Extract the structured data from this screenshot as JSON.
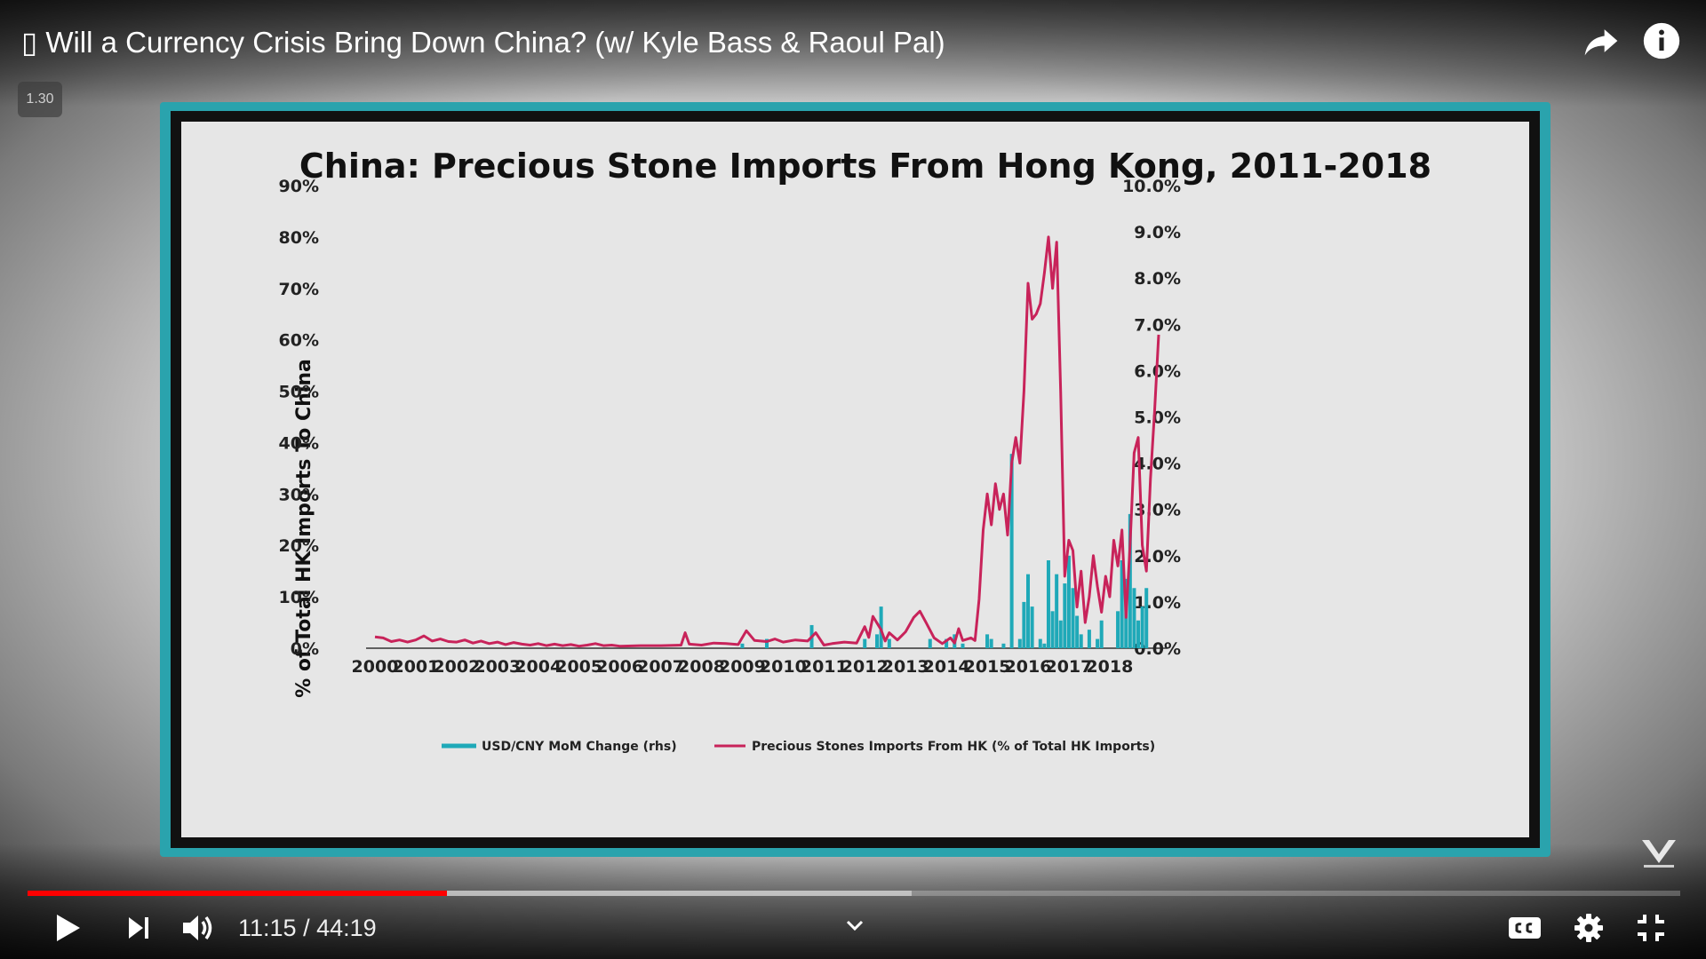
{
  "player": {
    "title": "▯ Will a Currency Crisis Bring Down China? (w/ Kyle Bass & Raoul Pal)",
    "speed_badge": "1.30",
    "time_current": "11:15",
    "time_separator": " / ",
    "time_total": "44:19",
    "progress_played_fraction": 0.254,
    "progress_buffered_fraction": 0.535,
    "icons": {
      "share": "share-arrow-icon",
      "info": "info-icon",
      "play": "play-icon",
      "next": "skip-next-icon",
      "volume": "volume-icon",
      "chevron": "chevron-down-icon",
      "cc": "closed-captions-icon",
      "settings": "gear-icon",
      "fullscreen_exit": "exit-fullscreen-icon",
      "logo": "real-vision-logo"
    },
    "colors": {
      "progress": "#ff0000",
      "frame": "#2aa3ad"
    }
  },
  "chart_data": {
    "type": "line",
    "title": "China: Precious Stone Imports From Hong Kong, 2011-2018",
    "ylabel": "% of Total HK Imports To China",
    "ylim": [
      0,
      90
    ],
    "y2lim": [
      0,
      10
    ],
    "y_ticks": [
      "90%",
      "80%",
      "70%",
      "60%",
      "50%",
      "40%",
      "30%",
      "20%",
      "10%",
      "0%"
    ],
    "y2_ticks": [
      "10.0%",
      "9.0%",
      "8.0%",
      "7.0%",
      "6.0%",
      "5.0%",
      "4.0%",
      "3.0%",
      "2.0%",
      "1.0%",
      "0.0%"
    ],
    "x_ticks": [
      "2000",
      "2001",
      "2002",
      "2003",
      "2004",
      "2005",
      "2006",
      "2007",
      "2008",
      "2009",
      "2010",
      "2011",
      "2012",
      "2013",
      "2014",
      "2015",
      "2016",
      "2017",
      "2018"
    ],
    "series": [
      {
        "name": "USD/CNY MoM Change (rhs)",
        "type": "bar",
        "axis": "right",
        "color": "#1fa9b8",
        "points": [
          [
            2009.0,
            0.1
          ],
          [
            2009.6,
            0.2
          ],
          [
            2010.7,
            0.5
          ],
          [
            2012.0,
            0.2
          ],
          [
            2012.3,
            0.3
          ],
          [
            2012.4,
            0.9
          ],
          [
            2012.6,
            0.2
          ],
          [
            2013.6,
            0.2
          ],
          [
            2014.0,
            0.2
          ],
          [
            2014.2,
            0.3
          ],
          [
            2014.4,
            0.1
          ],
          [
            2015.0,
            0.3
          ],
          [
            2015.1,
            0.2
          ],
          [
            2015.4,
            0.1
          ],
          [
            2015.6,
            4.2
          ],
          [
            2015.8,
            0.2
          ],
          [
            2015.9,
            1.0
          ],
          [
            2016.0,
            1.6
          ],
          [
            2016.1,
            0.9
          ],
          [
            2016.3,
            0.2
          ],
          [
            2016.4,
            0.1
          ],
          [
            2016.5,
            1.9
          ],
          [
            2016.6,
            0.8
          ],
          [
            2016.7,
            1.6
          ],
          [
            2016.8,
            0.6
          ],
          [
            2016.9,
            1.4
          ],
          [
            2017.0,
            2.0
          ],
          [
            2017.1,
            1.3
          ],
          [
            2017.2,
            0.7
          ],
          [
            2017.3,
            0.3
          ],
          [
            2017.5,
            0.4
          ],
          [
            2017.7,
            0.2
          ],
          [
            2017.8,
            0.6
          ],
          [
            2018.2,
            0.8
          ],
          [
            2018.3,
            1.9
          ],
          [
            2018.4,
            1.5
          ],
          [
            2018.5,
            2.9
          ],
          [
            2018.6,
            1.3
          ],
          [
            2018.7,
            0.6
          ],
          [
            2018.8,
            0.9
          ],
          [
            2018.9,
            1.3
          ]
        ]
      },
      {
        "name": "Precious Stones Imports From HK (% of Total HK Imports)",
        "type": "line",
        "axis": "left",
        "color": "#c8235a",
        "points": [
          [
            2000.0,
            2.2
          ],
          [
            2000.2,
            2.0
          ],
          [
            2000.4,
            1.3
          ],
          [
            2000.6,
            1.6
          ],
          [
            2000.8,
            1.2
          ],
          [
            2001.0,
            1.6
          ],
          [
            2001.2,
            2.4
          ],
          [
            2001.4,
            1.4
          ],
          [
            2001.6,
            1.8
          ],
          [
            2001.8,
            1.3
          ],
          [
            2002.0,
            1.2
          ],
          [
            2002.2,
            1.6
          ],
          [
            2002.4,
            1.0
          ],
          [
            2002.6,
            1.4
          ],
          [
            2002.8,
            0.9
          ],
          [
            2003.0,
            1.2
          ],
          [
            2003.2,
            0.7
          ],
          [
            2003.4,
            1.1
          ],
          [
            2003.6,
            0.8
          ],
          [
            2003.8,
            0.6
          ],
          [
            2004.0,
            0.9
          ],
          [
            2004.2,
            0.5
          ],
          [
            2004.4,
            0.8
          ],
          [
            2004.6,
            0.5
          ],
          [
            2004.8,
            0.7
          ],
          [
            2005.0,
            0.4
          ],
          [
            2005.2,
            0.6
          ],
          [
            2005.4,
            0.9
          ],
          [
            2005.6,
            0.5
          ],
          [
            2005.8,
            0.6
          ],
          [
            2006.0,
            0.4
          ],
          [
            2006.5,
            0.5
          ],
          [
            2007.0,
            0.5
          ],
          [
            2007.5,
            0.6
          ],
          [
            2007.6,
            3.0
          ],
          [
            2007.7,
            0.8
          ],
          [
            2008.0,
            0.6
          ],
          [
            2008.3,
            1.0
          ],
          [
            2008.6,
            0.9
          ],
          [
            2008.9,
            0.7
          ],
          [
            2009.1,
            3.4
          ],
          [
            2009.3,
            1.5
          ],
          [
            2009.6,
            1.3
          ],
          [
            2009.8,
            1.8
          ],
          [
            2010.0,
            1.2
          ],
          [
            2010.3,
            1.6
          ],
          [
            2010.6,
            1.4
          ],
          [
            2010.8,
            3.0
          ],
          [
            2011.0,
            0.6
          ],
          [
            2011.2,
            0.9
          ],
          [
            2011.5,
            1.2
          ],
          [
            2011.8,
            1.0
          ],
          [
            2012.0,
            4.2
          ],
          [
            2012.1,
            2.1
          ],
          [
            2012.2,
            6.2
          ],
          [
            2012.4,
            3.6
          ],
          [
            2012.5,
            1.4
          ],
          [
            2012.6,
            3.0
          ],
          [
            2012.8,
            1.6
          ],
          [
            2013.0,
            3.2
          ],
          [
            2013.2,
            6.0
          ],
          [
            2013.35,
            7.2
          ],
          [
            2013.5,
            5.0
          ],
          [
            2013.7,
            2.0
          ],
          [
            2013.9,
            0.9
          ],
          [
            2014.1,
            2.0
          ],
          [
            2014.2,
            1.0
          ],
          [
            2014.3,
            3.8
          ],
          [
            2014.4,
            1.5
          ],
          [
            2014.6,
            2.0
          ],
          [
            2014.7,
            1.5
          ],
          [
            2014.8,
            9.5
          ],
          [
            2014.9,
            23.0
          ],
          [
            2015.0,
            30.0
          ],
          [
            2015.1,
            24.0
          ],
          [
            2015.2,
            32.0
          ],
          [
            2015.3,
            27.0
          ],
          [
            2015.4,
            30.0
          ],
          [
            2015.5,
            22.0
          ],
          [
            2015.6,
            36.0
          ],
          [
            2015.7,
            41.0
          ],
          [
            2015.8,
            36.0
          ],
          [
            2015.9,
            50.0
          ],
          [
            2016.0,
            71.0
          ],
          [
            2016.1,
            64.0
          ],
          [
            2016.2,
            65.0
          ],
          [
            2016.3,
            67.0
          ],
          [
            2016.4,
            73.0
          ],
          [
            2016.5,
            80.0
          ],
          [
            2016.6,
            70.0
          ],
          [
            2016.7,
            79.0
          ],
          [
            2016.8,
            50.0
          ],
          [
            2016.9,
            14.0
          ],
          [
            2017.0,
            21.0
          ],
          [
            2017.1,
            19.0
          ],
          [
            2017.2,
            8.0
          ],
          [
            2017.3,
            15.0
          ],
          [
            2017.4,
            5.0
          ],
          [
            2017.5,
            10.0
          ],
          [
            2017.6,
            18.0
          ],
          [
            2017.7,
            12.0
          ],
          [
            2017.8,
            7.0
          ],
          [
            2017.9,
            14.0
          ],
          [
            2018.0,
            10.0
          ],
          [
            2018.1,
            21.0
          ],
          [
            2018.2,
            16.0
          ],
          [
            2018.3,
            23.0
          ],
          [
            2018.4,
            6.0
          ],
          [
            2018.5,
            20.0
          ],
          [
            2018.6,
            38.0
          ],
          [
            2018.7,
            41.0
          ],
          [
            2018.8,
            20.0
          ],
          [
            2018.9,
            15.0
          ],
          [
            2019.0,
            33.0
          ],
          [
            2019.1,
            46.0
          ],
          [
            2019.2,
            61.0
          ]
        ]
      }
    ]
  }
}
